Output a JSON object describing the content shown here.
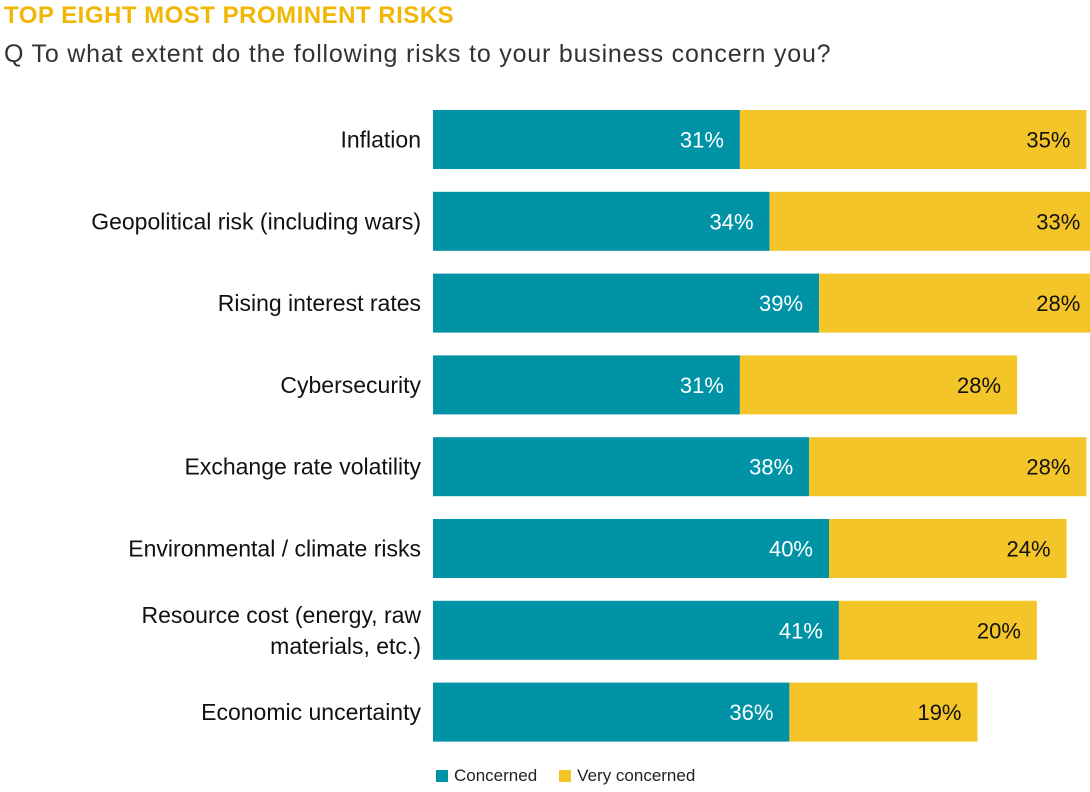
{
  "title": "TOP EIGHT MOST PROMINENT RISKS",
  "subtitle": "Q To what extent do the following risks to your business concern you?",
  "colors": {
    "concerned": "#0093a6",
    "very_concerned": "#f4c529"
  },
  "chart_data": {
    "type": "bar",
    "orientation": "horizontal",
    "stacked": true,
    "categories": [
      "Inflation",
      "Geopolitical risk (including wars)",
      "Rising interest rates",
      "Cybersecurity",
      "Exchange rate volatility",
      "Environmental / climate risks",
      "Resource cost (energy, raw materials, etc.)",
      "Economic uncertainty"
    ],
    "category_lines": [
      [
        "Inflation"
      ],
      [
        "Geopolitical risk (including wars)"
      ],
      [
        "Rising interest rates"
      ],
      [
        "Cybersecurity"
      ],
      [
        "Exchange rate volatility"
      ],
      [
        "Environmental / climate risks"
      ],
      [
        "Resource cost (energy, raw",
        "materials, etc.)"
      ],
      [
        "Economic uncertainty"
      ]
    ],
    "series": [
      {
        "name": "Concerned",
        "values": [
          31,
          34,
          39,
          31,
          38,
          40,
          41,
          36
        ],
        "labels": [
          "31%",
          "34%",
          "39%",
          "31%",
          "38%",
          "40%",
          "41%",
          "36%"
        ]
      },
      {
        "name": "Very concerned",
        "values": [
          35,
          33,
          28,
          28,
          28,
          24,
          20,
          19
        ],
        "labels": [
          "35%",
          "33%",
          "28%",
          "28%",
          "28%",
          "24%",
          "20%",
          "19%"
        ]
      }
    ],
    "unit": "%",
    "legend_position": "bottom",
    "grid": false
  }
}
